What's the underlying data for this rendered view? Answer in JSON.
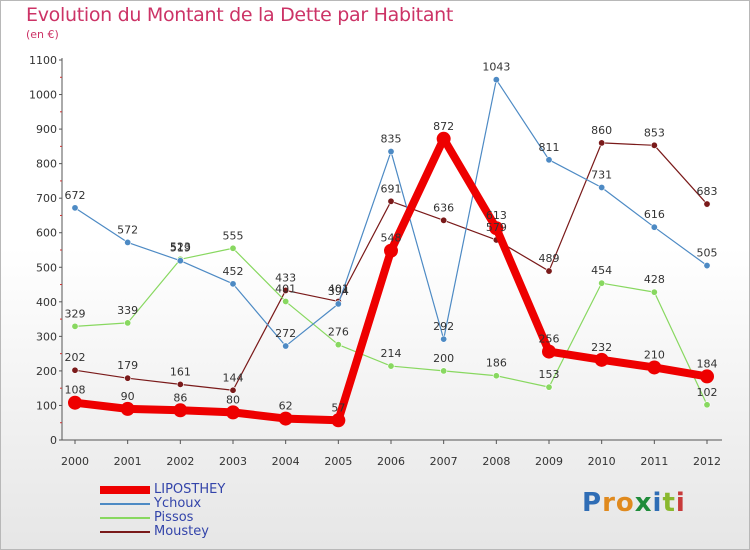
{
  "title": "Evolution du Montant de la Dette par Habitant",
  "subtitle": "(en €)",
  "logo": "Proxiti",
  "chart_data": {
    "type": "line",
    "title": "Evolution du Montant de la Dette par Habitant",
    "subtitle": "(en €)",
    "xlabel": "",
    "ylabel": "",
    "x": [
      2000,
      2001,
      2002,
      2003,
      2004,
      2005,
      2006,
      2007,
      2008,
      2009,
      2010,
      2011,
      2012
    ],
    "ylim": [
      0,
      1100
    ],
    "yticks": [
      0,
      100,
      200,
      300,
      400,
      500,
      600,
      700,
      800,
      900,
      1000,
      1100
    ],
    "grid": false,
    "legend_position": "bottom-left",
    "series": [
      {
        "name": "LIPOSTHEY",
        "color": "#ee0000",
        "values": [
          108,
          90,
          86,
          80,
          62,
          57,
          548,
          872,
          613,
          256,
          232,
          210,
          184
        ]
      },
      {
        "name": "Ychoux",
        "color": "#4d8ac4",
        "values": [
          672,
          572,
          519,
          452,
          272,
          394,
          835,
          292,
          1043,
          811,
          731,
          616,
          505
        ]
      },
      {
        "name": "Pissos",
        "color": "#88d860",
        "values": [
          329,
          339,
          523,
          555,
          401,
          276,
          214,
          200,
          186,
          153,
          454,
          428,
          102
        ]
      },
      {
        "name": "Moustey",
        "color": "#7a1a1a",
        "values": [
          202,
          179,
          161,
          144,
          433,
          401,
          691,
          636,
          579,
          489,
          860,
          853,
          683
        ]
      }
    ]
  }
}
